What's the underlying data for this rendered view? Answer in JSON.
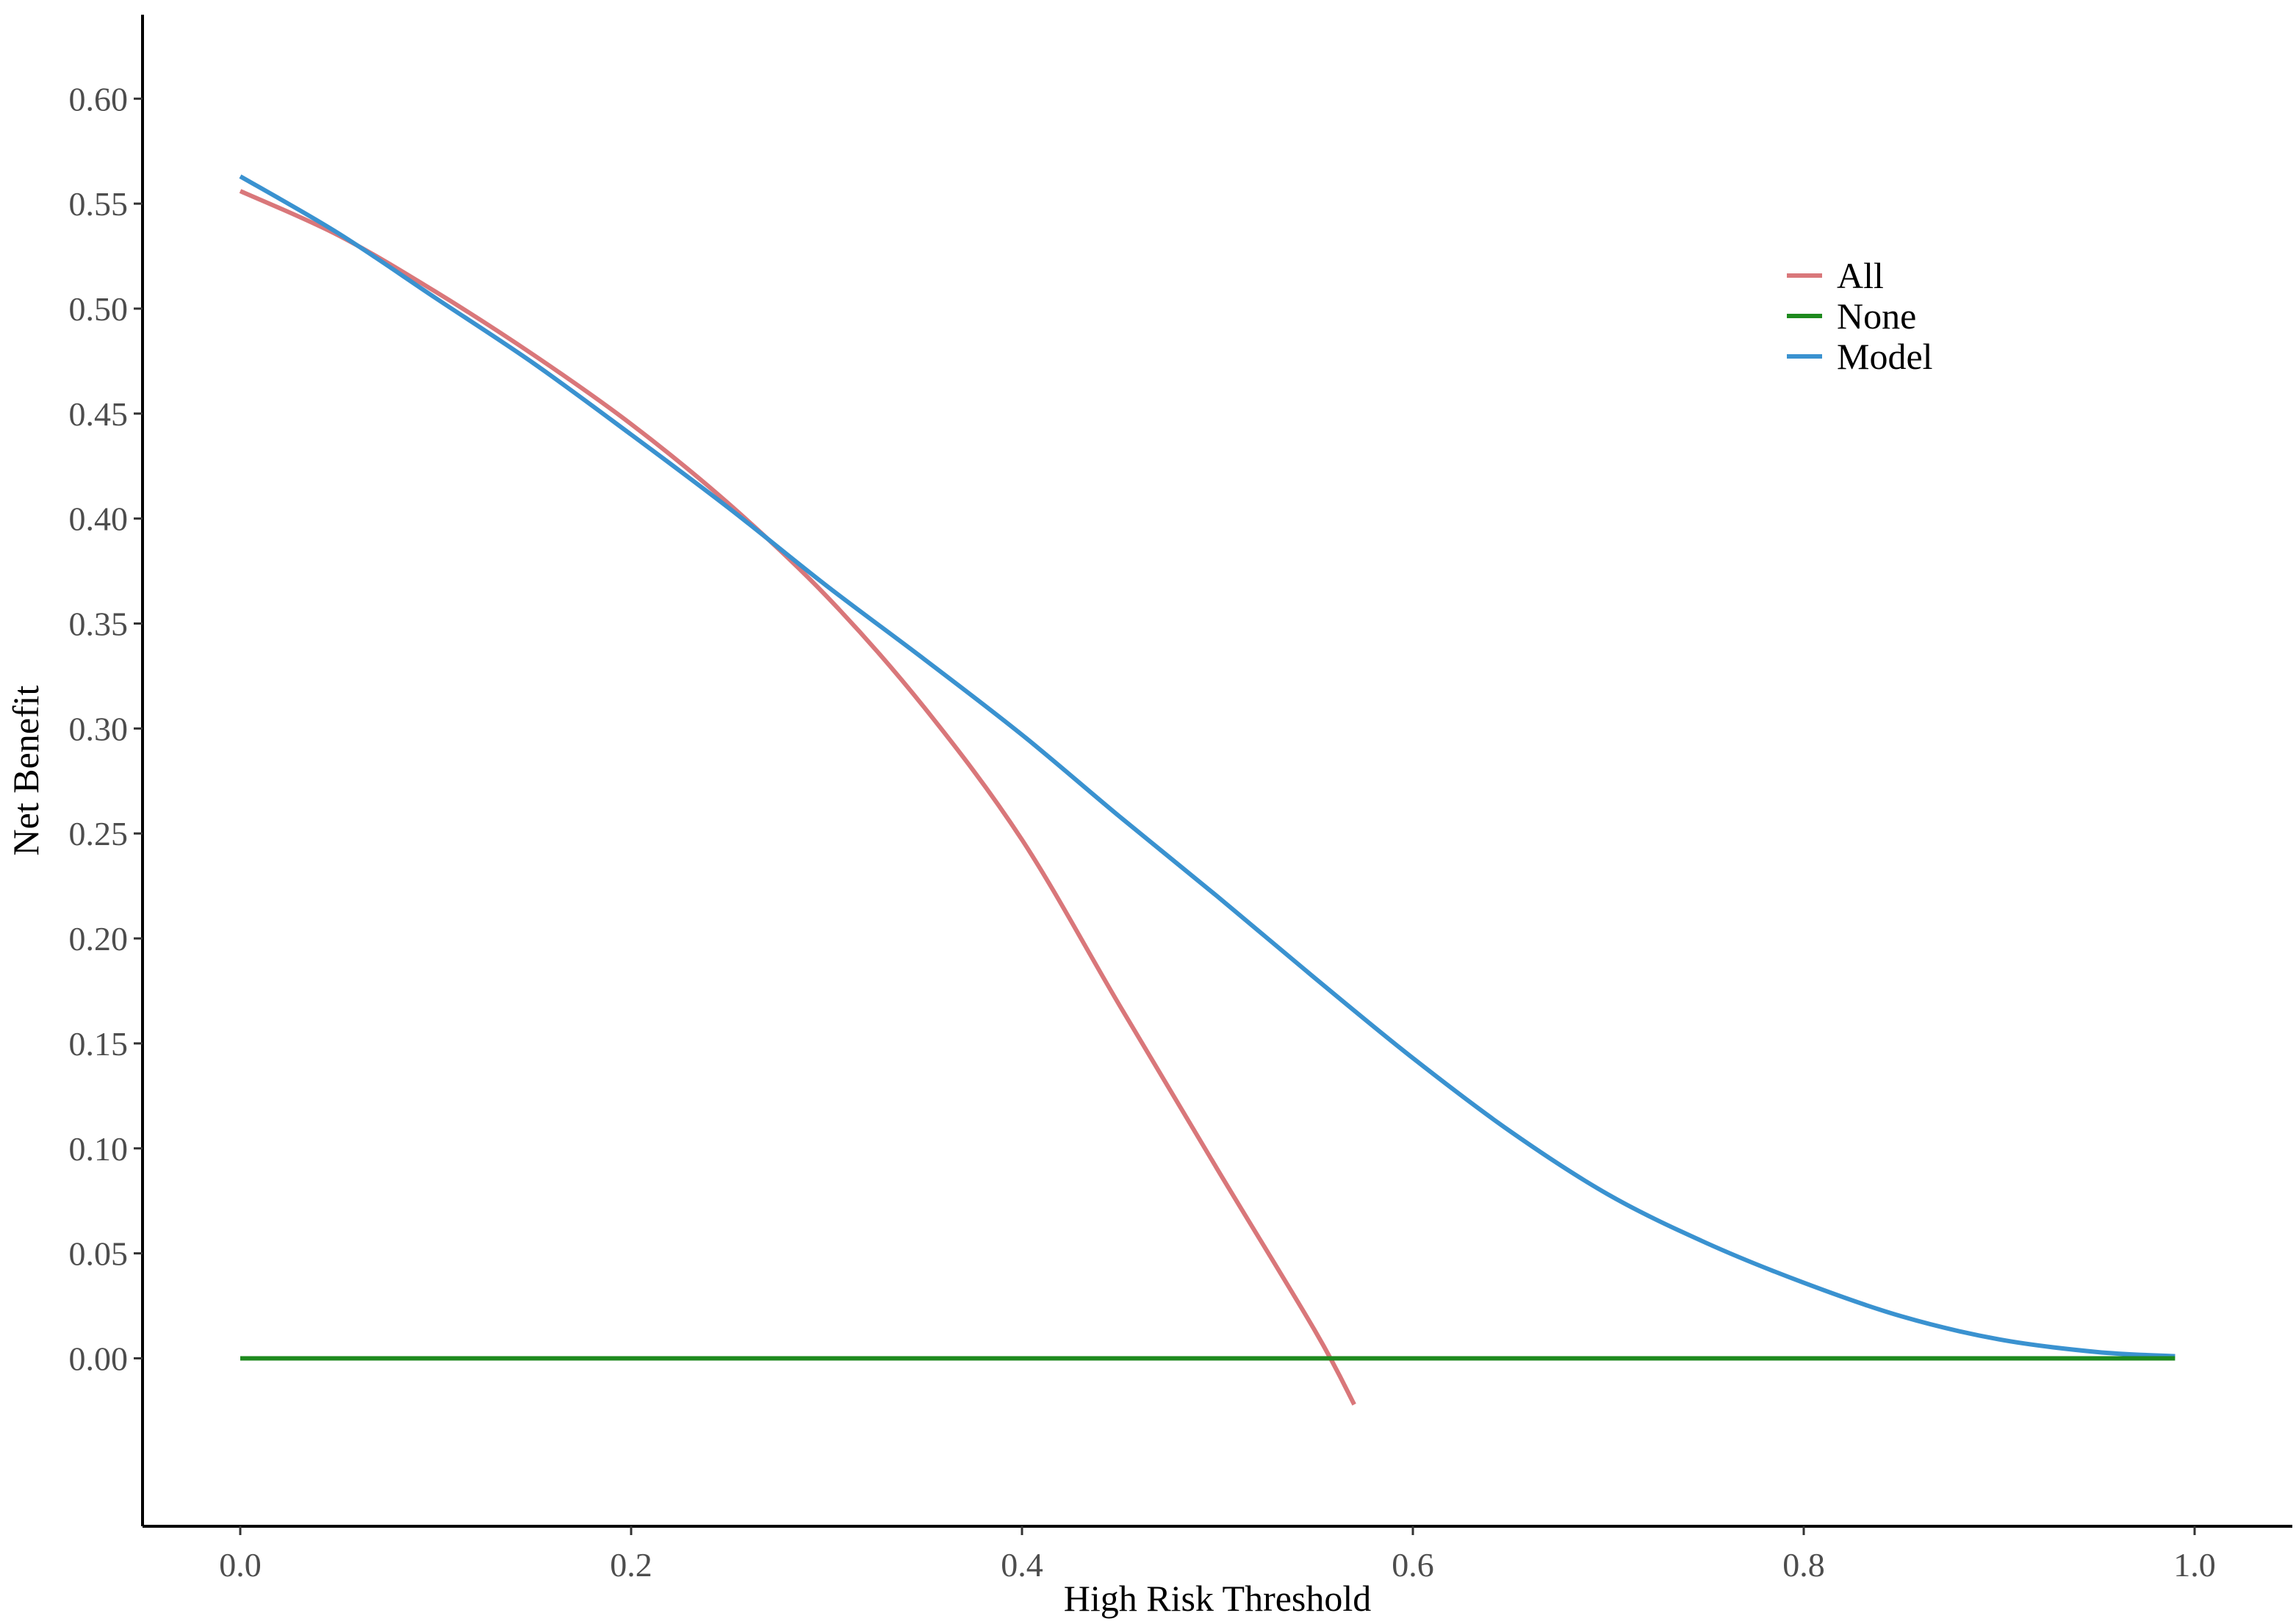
{
  "chart_data": {
    "type": "line",
    "title": "",
    "xlabel": "High Risk Threshold",
    "ylabel": "Net Benefit",
    "xlim": [
      -0.05,
      1.05
    ],
    "ylim": [
      -0.08,
      0.64
    ],
    "x_ticks": [
      0.0,
      0.2,
      0.4,
      0.6,
      0.8,
      1.0
    ],
    "x_tick_labels": [
      "0.0",
      "0.2",
      "0.4",
      "0.6",
      "0.8",
      "1.0"
    ],
    "y_ticks": [
      0.0,
      0.05,
      0.1,
      0.15,
      0.2,
      0.25,
      0.3,
      0.35,
      0.4,
      0.45,
      0.5,
      0.55,
      0.6
    ],
    "y_tick_labels": [
      "0.00",
      "0.05",
      "0.10",
      "0.15",
      "0.20",
      "0.25",
      "0.30",
      "0.35",
      "0.40",
      "0.45",
      "0.50",
      "0.55",
      "0.60"
    ],
    "grid": false,
    "legend_position": "top-right",
    "series": [
      {
        "name": "All",
        "color": "#D9777A",
        "points": [
          [
            0.0,
            0.556
          ],
          [
            0.05,
            0.535
          ],
          [
            0.1,
            0.508
          ],
          [
            0.15,
            0.478
          ],
          [
            0.2,
            0.445
          ],
          [
            0.25,
            0.407
          ],
          [
            0.3,
            0.363
          ],
          [
            0.35,
            0.31
          ],
          [
            0.4,
            0.247
          ],
          [
            0.45,
            0.168
          ],
          [
            0.5,
            0.09
          ],
          [
            0.55,
            0.013
          ],
          [
            0.57,
            -0.022
          ]
        ]
      },
      {
        "name": "None",
        "color": "#1E8A1E",
        "points": [
          [
            0.0,
            0.0
          ],
          [
            0.99,
            0.0
          ]
        ]
      },
      {
        "name": "Model",
        "color": "#3A92D0",
        "points": [
          [
            0.0,
            0.563
          ],
          [
            0.05,
            0.536
          ],
          [
            0.1,
            0.505
          ],
          [
            0.15,
            0.474
          ],
          [
            0.2,
            0.44
          ],
          [
            0.25,
            0.405
          ],
          [
            0.3,
            0.368
          ],
          [
            0.35,
            0.333
          ],
          [
            0.4,
            0.297
          ],
          [
            0.45,
            0.258
          ],
          [
            0.5,
            0.22
          ],
          [
            0.55,
            0.181
          ],
          [
            0.6,
            0.143
          ],
          [
            0.65,
            0.108
          ],
          [
            0.7,
            0.078
          ],
          [
            0.75,
            0.055
          ],
          [
            0.8,
            0.036
          ],
          [
            0.85,
            0.02
          ],
          [
            0.9,
            0.009
          ],
          [
            0.95,
            0.003
          ],
          [
            0.99,
            0.001
          ]
        ]
      }
    ]
  }
}
